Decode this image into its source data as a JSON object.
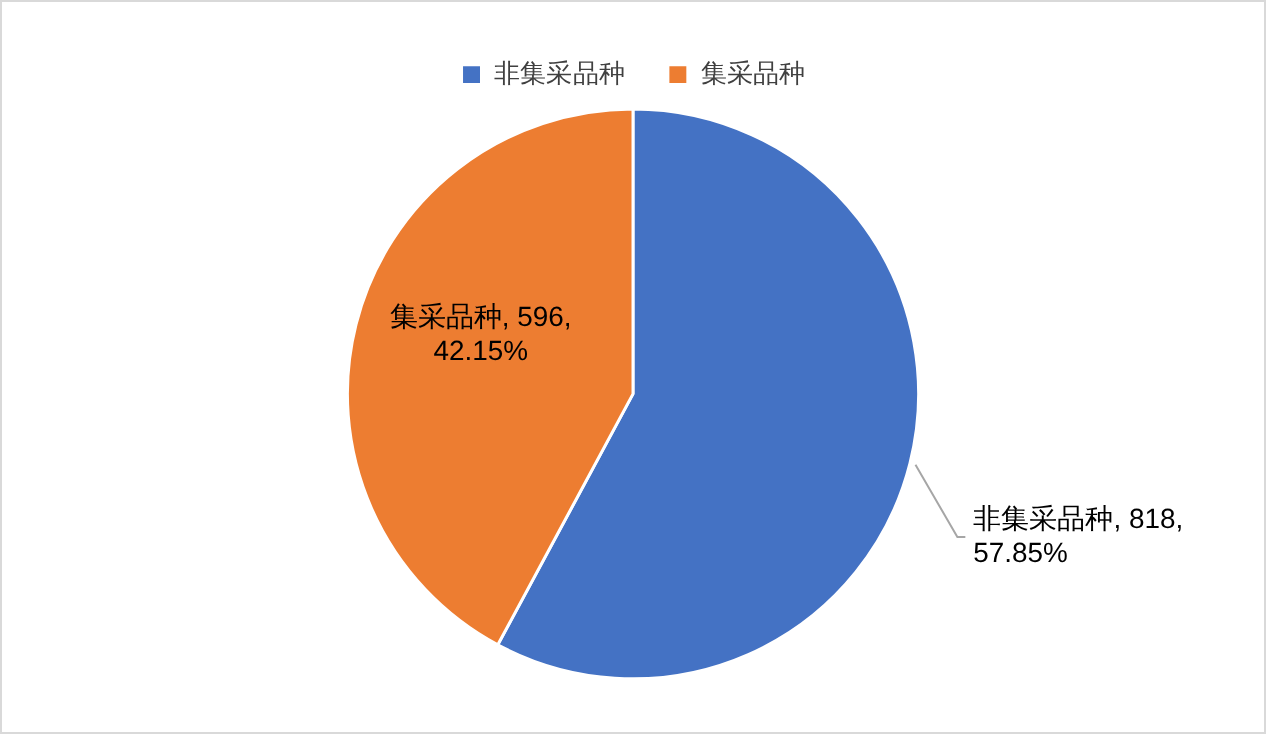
{
  "chart_data": {
    "type": "pie",
    "categories": [
      "非集采品种",
      "集采品种"
    ],
    "values": [
      818,
      596
    ],
    "colors": [
      "#4472c4",
      "#ed7d31"
    ],
    "value_labels": [
      "非集采品种, 818, 57.85%",
      "集采品种, 596, 42.15%"
    ],
    "legend": "top"
  }
}
